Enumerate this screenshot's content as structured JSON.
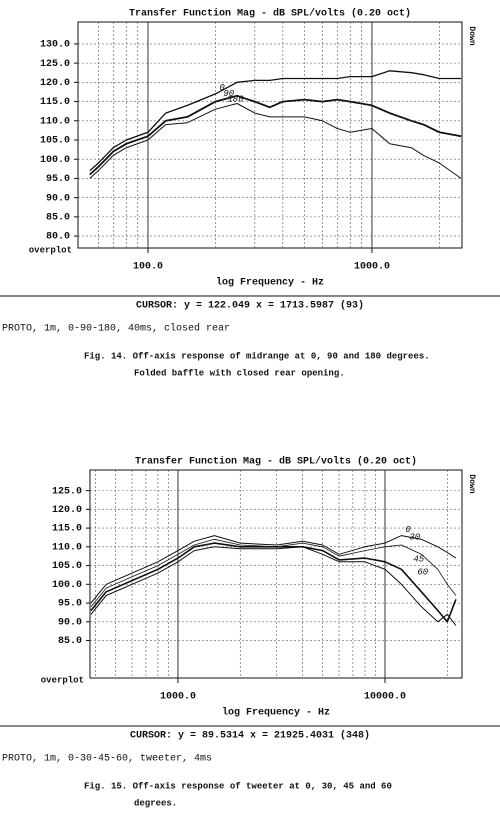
{
  "chart_data": [
    {
      "type": "line",
      "title": "Transfer Function Mag - dB SPL/volts (0.20 oct)",
      "x_label": "log Frequency - Hz",
      "corner_label": "overplot",
      "side_label": "Down",
      "log_x": true,
      "grid": true,
      "xlim": [
        48.7,
        2524
      ],
      "ylim": [
        76.9,
        135.7
      ],
      "xticks": [
        {
          "value": 100,
          "label": "100.0"
        },
        {
          "value": 1000,
          "label": "1000.0"
        }
      ],
      "minor_xticks": [
        60,
        70,
        80,
        90,
        200,
        300,
        400,
        500,
        600,
        700,
        800,
        900,
        2000
      ],
      "yticks": [
        {
          "value": 80,
          "label": "80.0"
        },
        {
          "value": 85,
          "label": "85.0"
        },
        {
          "value": 90,
          "label": "90.0"
        },
        {
          "value": 95,
          "label": "95.0"
        },
        {
          "value": 100,
          "label": "100.0"
        },
        {
          "value": 105,
          "label": "105.0"
        },
        {
          "value": 110,
          "label": "110.0"
        },
        {
          "value": 115,
          "label": "115.0"
        },
        {
          "value": 120,
          "label": "120.0"
        },
        {
          "value": 125,
          "label": "125.0"
        },
        {
          "value": 130,
          "label": "130.0"
        }
      ],
      "x": [
        55,
        60,
        70,
        80,
        100,
        120,
        150,
        200,
        250,
        300,
        350,
        400,
        500,
        600,
        700,
        800,
        1000,
        1200,
        1500,
        1700,
        2000,
        2500
      ],
      "series": [
        {
          "name": "0",
          "color": "#111111",
          "values": [
            97,
            99,
            103,
            105,
            107,
            112,
            114,
            117,
            120,
            120.5,
            120.5,
            121,
            121,
            121,
            121,
            121.5,
            121.5,
            123,
            122.5,
            122,
            121,
            121
          ]
        },
        {
          "name": "90",
          "color": "#111111",
          "values": [
            96,
            98,
            102,
            104,
            106,
            110,
            111,
            115,
            116.5,
            115,
            113.5,
            115,
            115.5,
            115,
            115.5,
            115,
            114,
            112,
            110,
            109,
            107,
            106
          ]
        },
        {
          "name": "180",
          "color": "#111111",
          "values": [
            95,
            97,
            101,
            103,
            105,
            109,
            109.5,
            113,
            114.5,
            112,
            111,
            111,
            111,
            110,
            108,
            107,
            108,
            104,
            103,
            101,
            99,
            95
          ]
        }
      ],
      "cursor": "CURSOR: y = 122.049 x = 1713.5987 (93)",
      "note": "PROTO, 1m, 0-90-180, 40ms, closed rear",
      "caption": [
        "Fig. 14.  Off-axis response of midrange at 0, 90 and 180 degrees.",
        "Folded baffle with closed rear opening."
      ]
    },
    {
      "type": "line",
      "title": "Transfer Function Mag - dB SPL/volts (0.20 oct)",
      "x_label": "log Frequency - Hz",
      "corner_label": "overplot",
      "side_label": "Down",
      "log_x": true,
      "grid": true,
      "xlim": [
        376,
        23550
      ],
      "ylim": [
        75,
        130.5
      ],
      "xticks": [
        {
          "value": 1000,
          "label": "1000.0"
        },
        {
          "value": 10000,
          "label": "10000.0"
        }
      ],
      "minor_xticks": [
        400,
        500,
        600,
        700,
        800,
        900,
        2000,
        3000,
        4000,
        5000,
        6000,
        7000,
        8000,
        9000,
        20000
      ],
      "yticks": [
        {
          "value": 85,
          "label": "85.0"
        },
        {
          "value": 90,
          "label": "90.0"
        },
        {
          "value": 95,
          "label": "95.0"
        },
        {
          "value": 100,
          "label": "100.0"
        },
        {
          "value": 105,
          "label": "105.0"
        },
        {
          "value": 110,
          "label": "110.0"
        },
        {
          "value": 115,
          "label": "115.0"
        },
        {
          "value": 120,
          "label": "120.0"
        },
        {
          "value": 125,
          "label": "125.0"
        }
      ],
      "x": [
        380,
        450,
        600,
        800,
        1000,
        1200,
        1500,
        2000,
        3000,
        4000,
        5000,
        6000,
        8000,
        10000,
        12000,
        15000,
        18000,
        20000,
        22000
      ],
      "series": [
        {
          "name": "0",
          "color": "#111111",
          "values": [
            95,
            100,
            103,
            106,
            109,
            111.5,
            113,
            111,
            110.5,
            111.5,
            110.5,
            108,
            110,
            111,
            113,
            112,
            110,
            108.5,
            107
          ]
        },
        {
          "name": "30",
          "color": "#111111",
          "values": [
            94,
            99,
            102,
            105,
            108,
            110.5,
            112,
            110.5,
            110,
            111,
            110,
            107.5,
            109,
            110,
            110.5,
            108,
            104,
            100,
            97
          ]
        },
        {
          "name": "45",
          "color": "#111111",
          "values": [
            93,
            98,
            101,
            104,
            107,
            110,
            111,
            110,
            110,
            110,
            109,
            106.5,
            107,
            106,
            104,
            98,
            93,
            90,
            96
          ]
        },
        {
          "name": "60",
          "color": "#111111",
          "values": [
            92,
            97,
            100,
            103,
            106,
            109,
            110,
            109.5,
            109.5,
            110,
            108,
            106,
            106,
            104,
            100,
            94,
            90,
            92,
            89
          ]
        }
      ],
      "cursor": "CURSOR: y = 89.5314 x = 21925.4031 (348)",
      "note": "PROTO, 1m, 0-30-45-60, tweeter, 4ms",
      "caption": [
        "Fig. 15.  Off-axis response of tweeter at 0, 30, 45 and 60",
        "degrees."
      ]
    }
  ]
}
